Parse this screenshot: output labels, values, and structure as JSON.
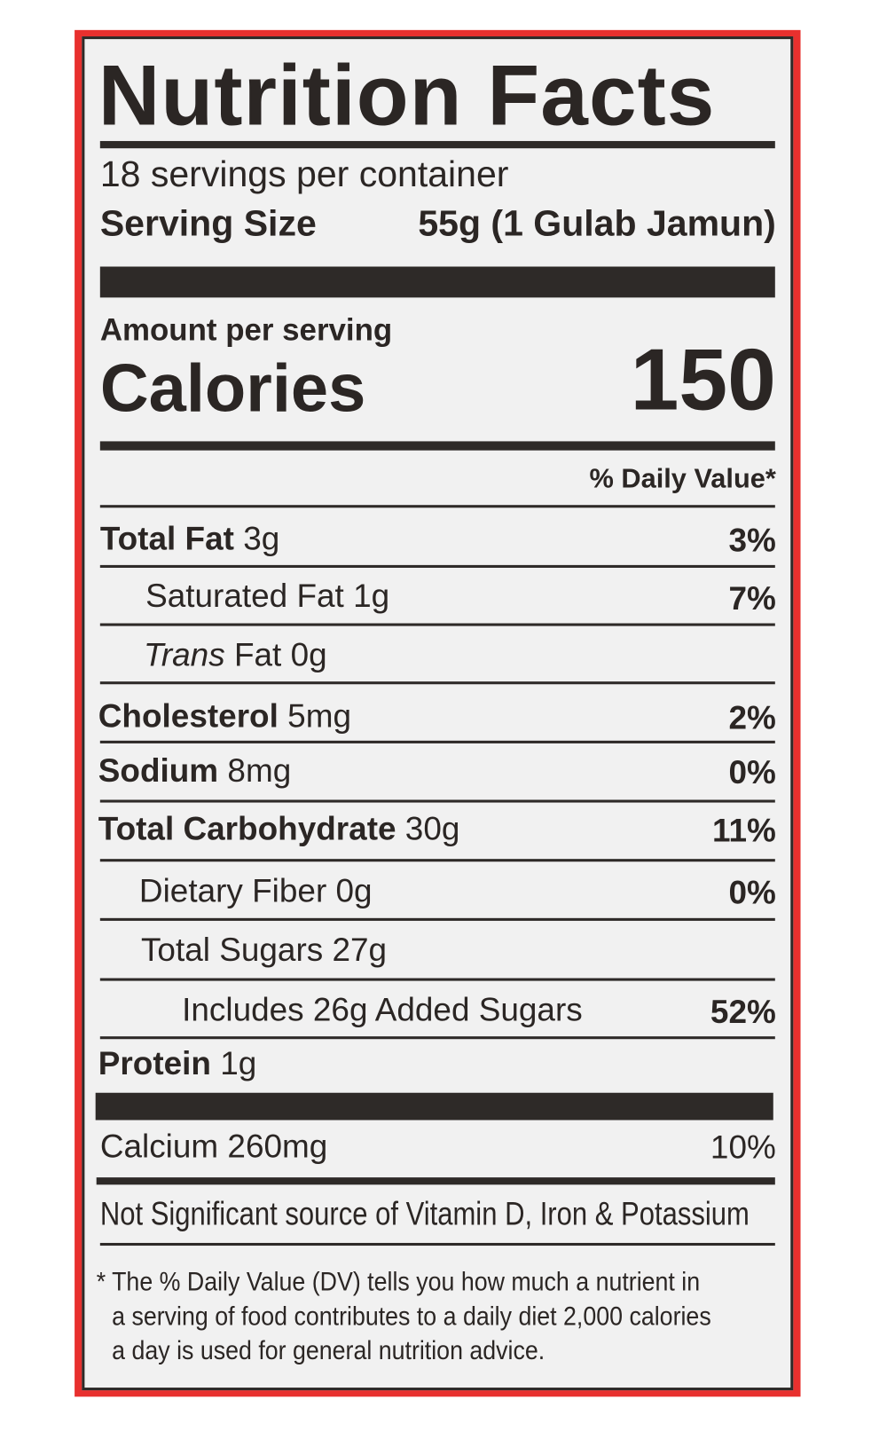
{
  "title": "Nutrition Facts",
  "servings_per_container": "18 servings per container",
  "serving_size_label": "Serving Size",
  "serving_size_value": "55g (1 Gulab Jamun)",
  "amount_per_serving": "Amount per serving",
  "calories_label": "Calories",
  "calories_value": "150",
  "daily_value_header": "% Daily Value*",
  "nutrients": [
    {
      "name": "Total Fat",
      "amount": "3g",
      "dv": "3%"
    },
    {
      "name": "Saturated Fat",
      "amount": "1g",
      "dv": "7%"
    },
    {
      "name": "Trans",
      "name_rest": "Fat",
      "amount": "0g",
      "dv": ""
    },
    {
      "name": "Cholesterol",
      "amount": "5mg",
      "dv": "2%"
    },
    {
      "name": "Sodium",
      "amount": "8mg",
      "dv": "0%"
    },
    {
      "name": "Total Carbohydrate",
      "amount": "30g",
      "dv": "11%"
    },
    {
      "name": "Dietary Fiber",
      "amount": "0g",
      "dv": "0%"
    },
    {
      "name": "Total Sugars",
      "amount": "27g",
      "dv": ""
    },
    {
      "name": "Includes 26g Added Sugars",
      "amount": "",
      "dv": "52%"
    },
    {
      "name": "Protein",
      "amount": "1g",
      "dv": ""
    }
  ],
  "calcium": {
    "label": "Calcium 260mg",
    "dv": "10%"
  },
  "not_significant": "Not Significant source of Vitamin D, Iron & Potassium",
  "footnote": [
    "* The % Daily Value (DV) tells you how much a nutrient in",
    "a serving of food contributes to a daily diet 2,000 calories",
    "a day is used for general nutrition advice."
  ],
  "colors": {
    "border": "#e8302e",
    "ink": "#2b2624",
    "background": "#f1f1f1"
  }
}
